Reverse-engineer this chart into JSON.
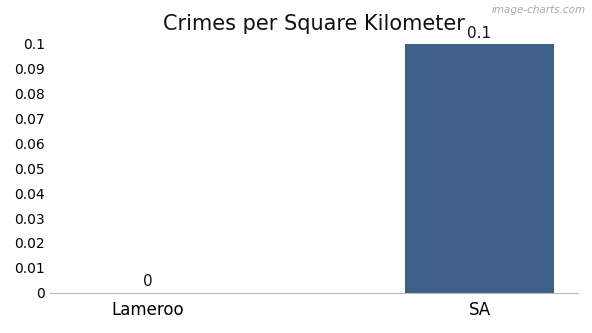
{
  "categories": [
    "Lameroo",
    "SA"
  ],
  "values": [
    0,
    0.1
  ],
  "bar_color": "#3d5f8a",
  "title": "Crimes per Square Kilometer",
  "title_fontsize": 15,
  "ylim": [
    0,
    0.1
  ],
  "yticks": [
    0,
    0.01,
    0.02,
    0.03,
    0.04,
    0.05,
    0.06,
    0.07,
    0.08,
    0.09,
    0.1
  ],
  "bar_labels": [
    "0",
    "0.1"
  ],
  "bar_label_fontsize": 11,
  "xlabel_fontsize": 12,
  "ytick_fontsize": 10,
  "background_color": "#ffffff",
  "watermark": "image-charts.com",
  "watermark_fontsize": 7.5,
  "bar_width": 0.45
}
